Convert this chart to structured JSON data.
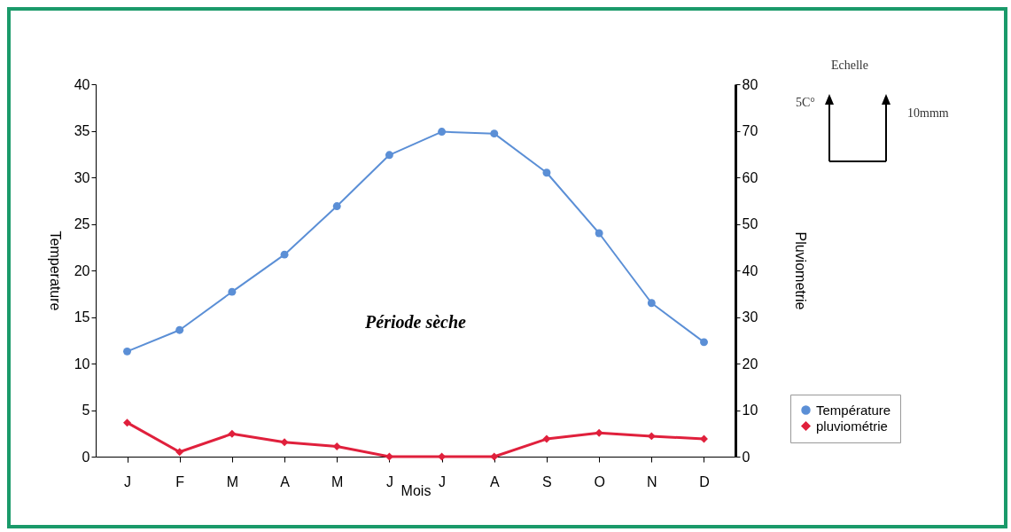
{
  "chart_data": {
    "type": "line",
    "xlabel": "Mois",
    "ylabel": "Temperature",
    "y2label": "Pluviometrie",
    "categories": [
      "J",
      "F",
      "M",
      "A",
      "M",
      "J",
      "J",
      "A",
      "S",
      "O",
      "N",
      "D"
    ],
    "series": [
      {
        "name": "Température",
        "color": "#5b8fd6",
        "marker": "circle",
        "values": [
          11.3,
          13.6,
          17.7,
          21.7,
          26.9,
          32.4,
          34.9,
          34.7,
          30.5,
          24.0,
          16.5,
          12.3
        ]
      },
      {
        "name": "pluviométrie",
        "color": "#e0203c",
        "marker": "diamond",
        "axis": "y2",
        "values": [
          7.3,
          1.0,
          4.9,
          3.1,
          2.2,
          0,
          0,
          0,
          3.8,
          5.1,
          4.4,
          3.8
        ]
      }
    ],
    "ylim": [
      0,
      40
    ],
    "yticks": [
      0,
      5,
      10,
      15,
      20,
      25,
      30,
      35,
      40
    ],
    "y2lim": [
      0,
      80
    ],
    "y2ticks": [
      0,
      10,
      20,
      30,
      40,
      50,
      60,
      70,
      80
    ],
    "legend": "bottom right",
    "grid": false,
    "annotations": [
      "Période sèche",
      "Echelle",
      "5C°",
      "10mmm"
    ]
  }
}
